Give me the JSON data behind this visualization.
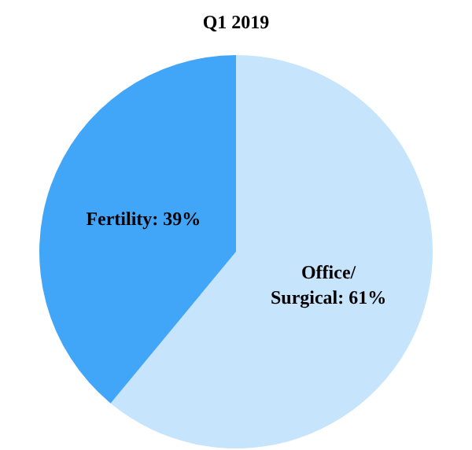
{
  "chart_data": {
    "type": "pie",
    "title": "Q1 2019",
    "categories": [
      "Office/Surgical",
      "Fertility"
    ],
    "values": [
      61,
      39
    ],
    "value_labels": [
      "61%",
      "39%"
    ],
    "colors": [
      "#c6e4fc",
      "#42a6f8"
    ]
  }
}
